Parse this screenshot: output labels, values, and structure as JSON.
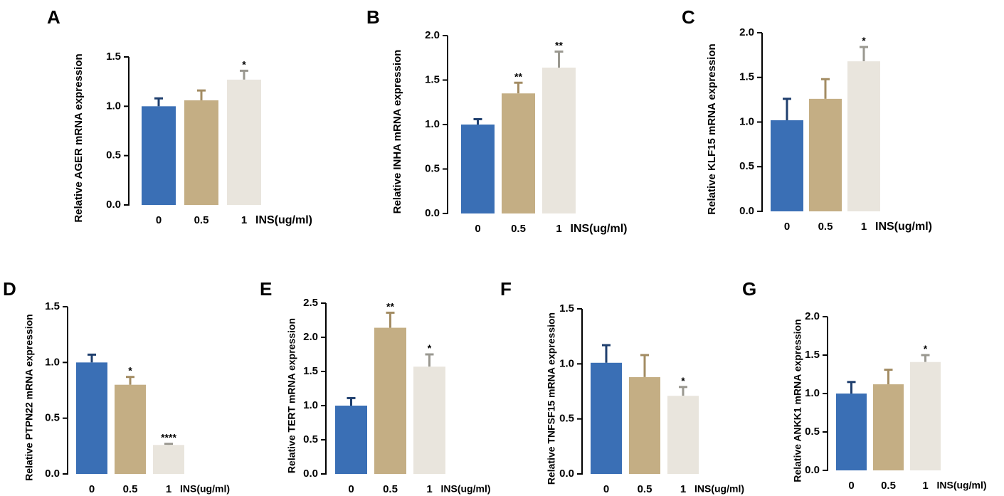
{
  "figure": {
    "bar_colors": [
      "#3a6fb5",
      "#c4ae84",
      "#e9e5dd"
    ],
    "error_colors": [
      "#1f3f6e",
      "#a38c63",
      "#9a9890"
    ]
  },
  "chart_data": [
    {
      "panel": "A",
      "type": "bar",
      "categories": [
        "0",
        "0.5",
        "1"
      ],
      "xlabel": "INS(ug/ml)",
      "ylabel": "Relative AGER mRNA expression",
      "values": [
        1.0,
        1.06,
        1.27
      ],
      "errors": [
        0.08,
        0.1,
        0.09
      ],
      "significance": [
        "",
        "",
        "*"
      ],
      "ylim": [
        0,
        1.5
      ],
      "yticks": [
        "0.0",
        "0.5",
        "1.0",
        "1.5"
      ]
    },
    {
      "panel": "B",
      "type": "bar",
      "categories": [
        "0",
        "0.5",
        "1"
      ],
      "xlabel": "INS(ug/ml)",
      "ylabel": "Relative INHA mRNA expression",
      "values": [
        1.0,
        1.35,
        1.64
      ],
      "errors": [
        0.06,
        0.12,
        0.18
      ],
      "significance": [
        "",
        "**",
        "**"
      ],
      "ylim": [
        0,
        2.0
      ],
      "yticks": [
        "0.0",
        "0.5",
        "1.0",
        "1.5",
        "2.0"
      ]
    },
    {
      "panel": "C",
      "type": "bar",
      "categories": [
        "0",
        "0.5",
        "1"
      ],
      "xlabel": "INS(ug/ml)",
      "ylabel": "Relative KLF15 mRNA expression",
      "values": [
        1.02,
        1.26,
        1.68
      ],
      "errors": [
        0.24,
        0.22,
        0.16
      ],
      "significance": [
        "",
        "",
        "*"
      ],
      "ylim": [
        0,
        2.0
      ],
      "yticks": [
        "0.0",
        "0.5",
        "1.0",
        "1.5",
        "2.0"
      ]
    },
    {
      "panel": "D",
      "type": "bar",
      "categories": [
        "0",
        "0.5",
        "1"
      ],
      "xlabel": "INS(ug/ml)",
      "ylabel": "Relative PTPN22 mRNA expression",
      "values": [
        1.0,
        0.8,
        0.26
      ],
      "errors": [
        0.07,
        0.07,
        0.01
      ],
      "significance": [
        "",
        "*",
        "****"
      ],
      "ylim": [
        0,
        1.5
      ],
      "yticks": [
        "0.0",
        "0.5",
        "1.0",
        "1.5"
      ]
    },
    {
      "panel": "E",
      "type": "bar",
      "categories": [
        "0",
        "0.5",
        "1"
      ],
      "xlabel": "INS(ug/ml)",
      "ylabel": "Relative TERT mRNA expression",
      "values": [
        1.0,
        2.14,
        1.57
      ],
      "errors": [
        0.11,
        0.22,
        0.18
      ],
      "significance": [
        "",
        "**",
        "*"
      ],
      "ylim": [
        0,
        2.5
      ],
      "yticks": [
        "0.0",
        "0.5",
        "1.0",
        "1.5",
        "2.0",
        "2.5"
      ]
    },
    {
      "panel": "F",
      "type": "bar",
      "categories": [
        "0",
        "0.5",
        "1"
      ],
      "xlabel": "INS(ug/ml)",
      "ylabel": "Relative TNFSF15 mRNA expression",
      "values": [
        1.01,
        0.88,
        0.71
      ],
      "errors": [
        0.16,
        0.2,
        0.08
      ],
      "significance": [
        "",
        "",
        "*"
      ],
      "ylim": [
        0,
        1.5
      ],
      "yticks": [
        "0.0",
        "0.5",
        "1.0",
        "1.5"
      ]
    },
    {
      "panel": "G",
      "type": "bar",
      "categories": [
        "0",
        "0.5",
        "1"
      ],
      "xlabel": "INS(ug/ml)",
      "ylabel": "Relative ANKK1 mRNA expression",
      "values": [
        1.0,
        1.12,
        1.41
      ],
      "errors": [
        0.15,
        0.19,
        0.09
      ],
      "significance": [
        "",
        "",
        "*"
      ],
      "ylim": [
        0,
        2.0
      ],
      "yticks": [
        "0.0",
        "0.5",
        "1.0",
        "1.5",
        "2.0"
      ]
    }
  ]
}
